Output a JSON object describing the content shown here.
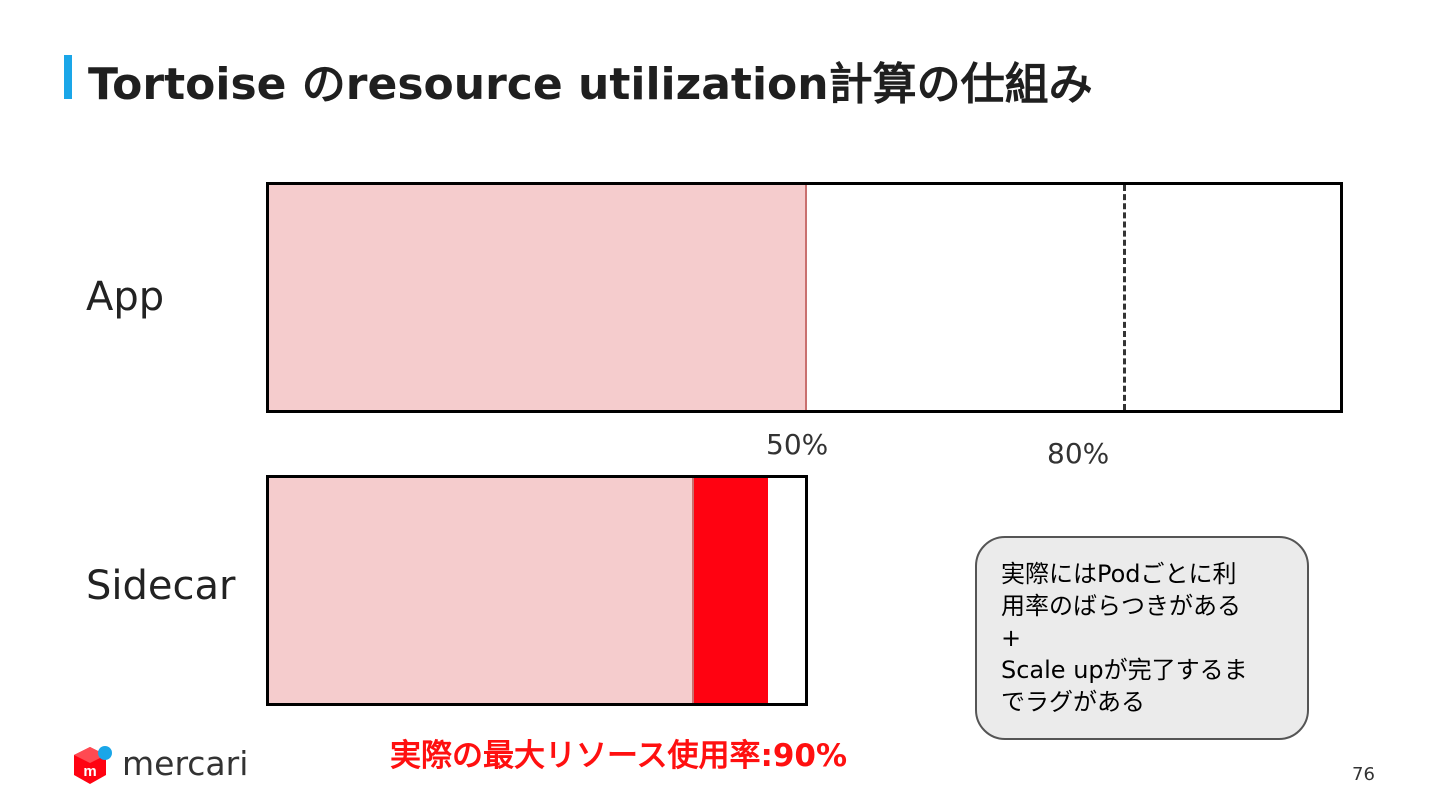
{
  "slide": {
    "title": "Tortoise のresource utilization計算の仕組み",
    "page_number": "76",
    "accent_color": "#1aa6e8"
  },
  "app": {
    "label": "App",
    "usage_fraction": 0.5,
    "threshold_fraction": 0.8
  },
  "sidecar": {
    "label": "Sidecar",
    "usage_fraction_of_app_scale": 0.395,
    "overshoot_fraction_of_app_scale": 0.068,
    "capacity_fraction_of_app_scale": 0.5
  },
  "ticks": {
    "fifty": "50%",
    "eighty": "80%"
  },
  "note": {
    "lines": [
      "実際にはPodごとに利",
      "用率のばらつきがある",
      "+",
      "Scale upが完了するま",
      "でラグがある"
    ]
  },
  "result_text": "実際の最大リソース使用率:90%",
  "brand": {
    "name": "mercari",
    "logo_icon": "mercari-cube-icon",
    "colors": {
      "cube": "#ff0211",
      "dot": "#1aa6e8"
    }
  },
  "colors": {
    "usage_fill": "#f5cccd",
    "overshoot_fill": "#ff0211",
    "result_text": "#ff1010"
  }
}
